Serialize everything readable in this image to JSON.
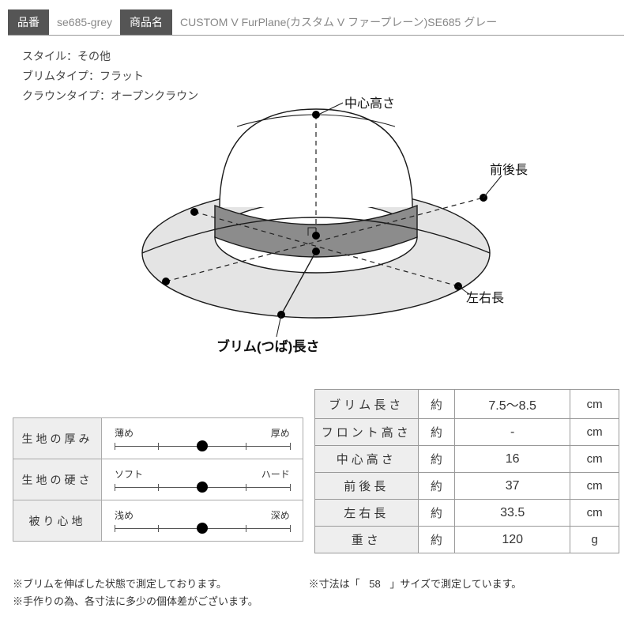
{
  "header": {
    "code_tag": "品番",
    "code_val": "se685-grey",
    "name_tag": "商品名",
    "name_val": "CUSTOM V FurPlane(カスタム V ファープレーン)SE685 グレー"
  },
  "specs": {
    "style": "スタイル：その他",
    "brim": "ブリムタイプ：フラット",
    "crown": "クラウンタイプ：オープンクラウン"
  },
  "diagram": {
    "colors": {
      "outline": "#1a1a1a",
      "band_fill": "#8c8c8c",
      "brim_fill": "#e4e4e4",
      "dash": "#222222",
      "dot": "#000000",
      "text": "#111111",
      "bg": "#ffffff"
    },
    "stroke_width": 1.4,
    "callouts": {
      "center_height": "中心高さ",
      "front_back": "前後長",
      "left_right": "左右長",
      "brim_len": "ブリム(つば)長さ"
    }
  },
  "sliders": {
    "rows": [
      {
        "label": "生地の厚み",
        "left": "薄め",
        "right": "厚め",
        "pos": 0.5,
        "ticks": 5
      },
      {
        "label": "生地の硬さ",
        "left": "ソフト",
        "right": "ハード",
        "pos": 0.5,
        "ticks": 5
      },
      {
        "label": "被り心地",
        "left": "浅め",
        "right": "深め",
        "pos": 0.5,
        "ticks": 5
      }
    ]
  },
  "measurements": {
    "approx": "約",
    "rows": [
      {
        "label": "ブリム長さ",
        "value": "7.5～8.5",
        "unit": "cm"
      },
      {
        "label": "フロント高さ",
        "value": "-",
        "unit": "cm"
      },
      {
        "label": "中心高さ",
        "value": "16",
        "unit": "cm"
      },
      {
        "label": "前後長",
        "value": "37",
        "unit": "cm"
      },
      {
        "label": "左右長",
        "value": "33.5",
        "unit": "cm"
      },
      {
        "label": "重さ",
        "value": "120",
        "unit": "g"
      }
    ]
  },
  "notes": {
    "left1": "※ブリムを伸ばした状態で測定しております。",
    "left2": "※手作りの為、各寸法に多少の個体差がございます。",
    "right_pre": "※寸法は「",
    "right_size": "58",
    "right_post": "」サイズで測定しています。"
  }
}
